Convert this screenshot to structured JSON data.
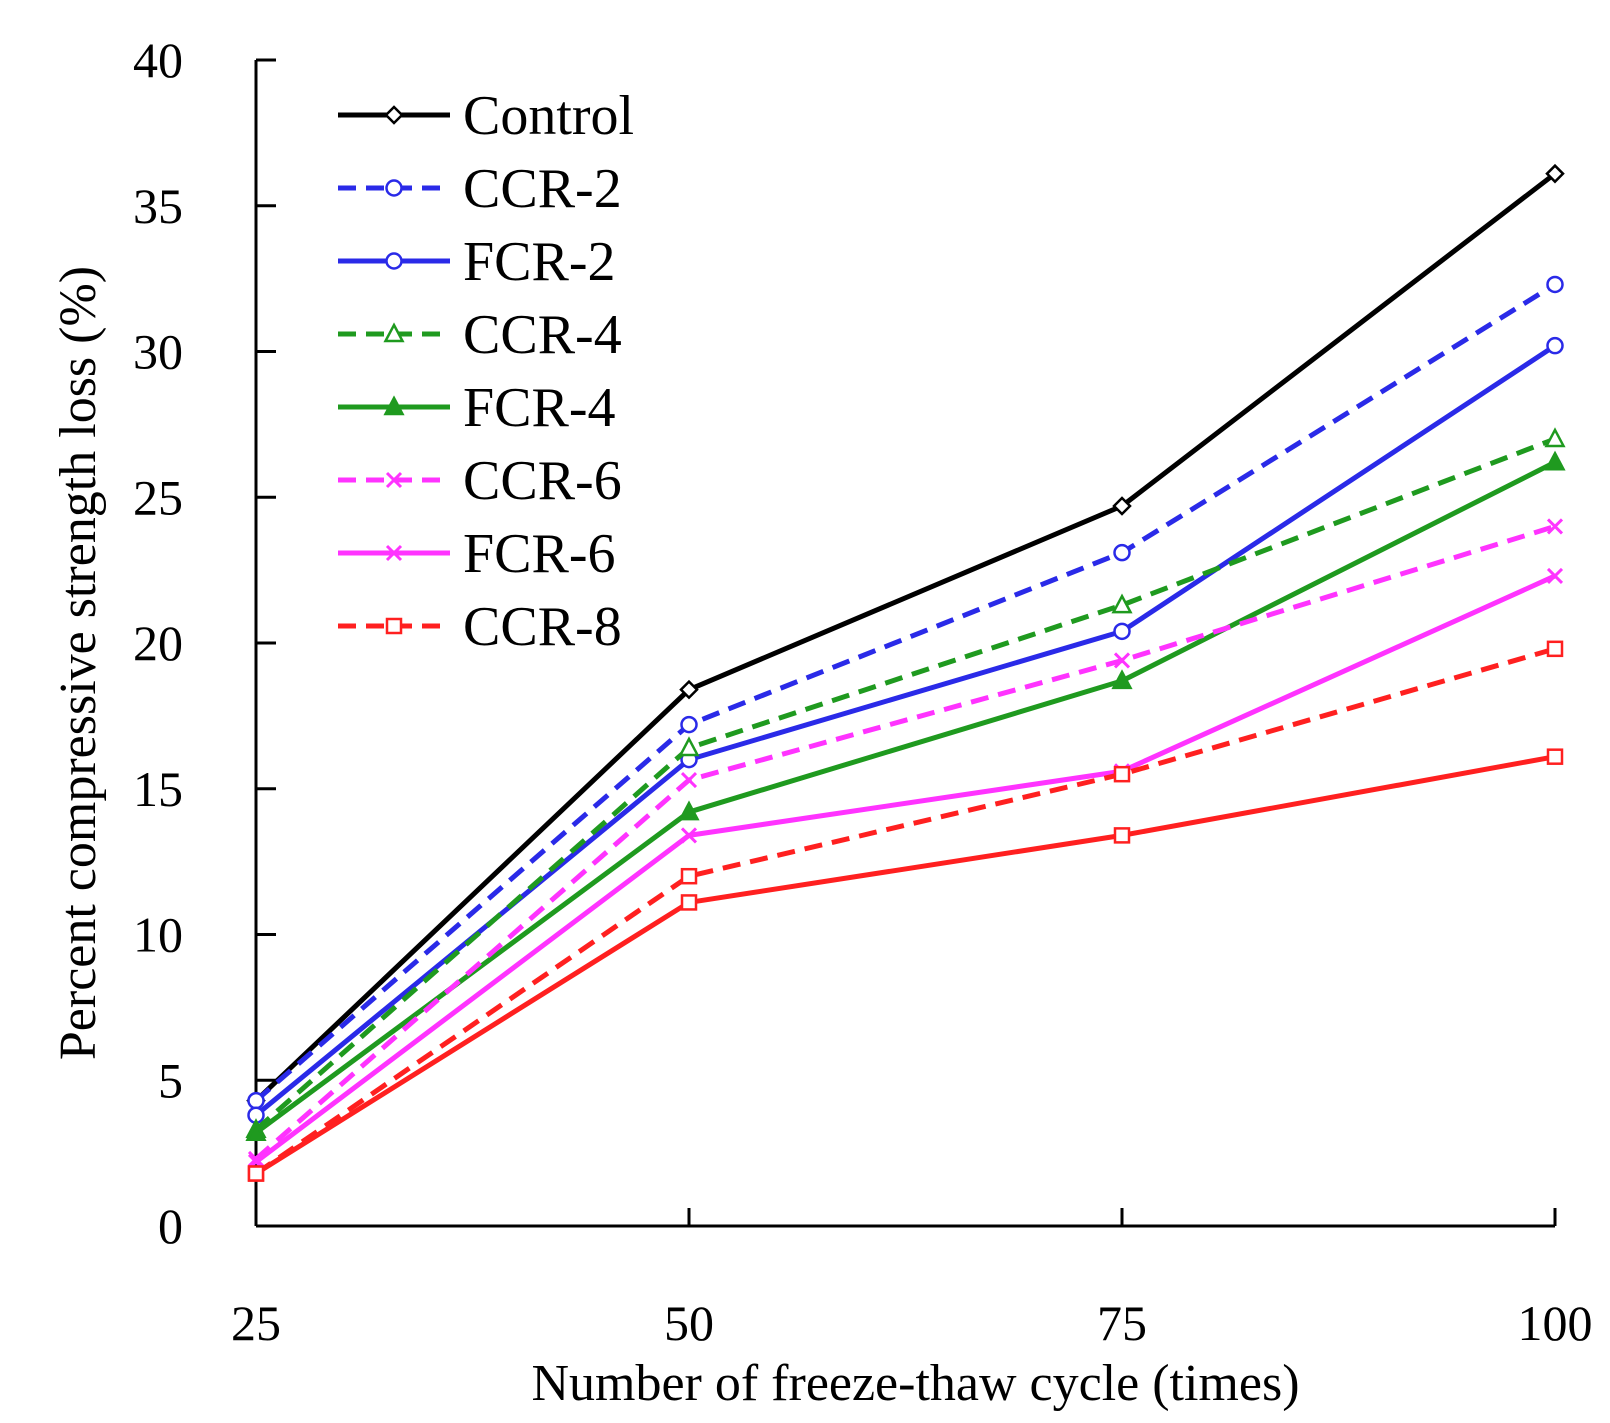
{
  "chart_data": {
    "type": "line",
    "title": "",
    "xlabel": "Number of freeze-thaw cycle (times)",
    "ylabel": "Percent compressive strength loss (%)",
    "x": [
      25,
      50,
      75,
      100
    ],
    "x_tick_labels": [
      "25",
      "50",
      "75",
      "100"
    ],
    "ylim": [
      0,
      40
    ],
    "y_ticks": [
      0,
      5,
      10,
      15,
      20,
      25,
      30,
      35,
      40
    ],
    "y_tick_labels": [
      "0",
      "5",
      "10",
      "15",
      "20",
      "25",
      "30",
      "35",
      "40"
    ],
    "grid": false,
    "legend_position": "top-left",
    "series": [
      {
        "name": "Control",
        "values": [
          4.3,
          18.4,
          24.7,
          36.1
        ],
        "color": "#000000",
        "dash": "solid",
        "marker": "diamond"
      },
      {
        "name": "CCR-2",
        "values": [
          4.3,
          17.2,
          23.1,
          32.3
        ],
        "color": "#2a2ae8",
        "dash": "dashed",
        "marker": "circle"
      },
      {
        "name": "FCR-2",
        "values": [
          3.8,
          16.0,
          20.4,
          30.2
        ],
        "color": "#2a2ae8",
        "dash": "solid",
        "marker": "circle"
      },
      {
        "name": "CCR-4",
        "values": [
          3.3,
          16.4,
          21.3,
          27.0
        ],
        "color": "#1f9a1f",
        "dash": "dashed",
        "marker": "triangle-open"
      },
      {
        "name": "FCR-4",
        "values": [
          3.2,
          14.2,
          18.7,
          26.2
        ],
        "color": "#1f9a1f",
        "dash": "solid",
        "marker": "triangle-filled"
      },
      {
        "name": "CCR-6",
        "values": [
          2.3,
          15.3,
          19.4,
          24.0
        ],
        "color": "#ff33ff",
        "dash": "dashed",
        "marker": "x"
      },
      {
        "name": "FCR-6",
        "values": [
          2.2,
          13.4,
          15.6,
          22.3
        ],
        "color": "#ff33ff",
        "dash": "solid",
        "marker": "x"
      },
      {
        "name": "CCR-8",
        "values": [
          1.8,
          12.0,
          15.5,
          19.8
        ],
        "color": "#ff2020",
        "dash": "dashed",
        "marker": "square"
      },
      {
        "name": "",
        "values": [
          1.8,
          11.1,
          13.4,
          16.1
        ],
        "color": "#ff2020",
        "dash": "solid",
        "marker": "square",
        "in_legend": false
      }
    ]
  }
}
